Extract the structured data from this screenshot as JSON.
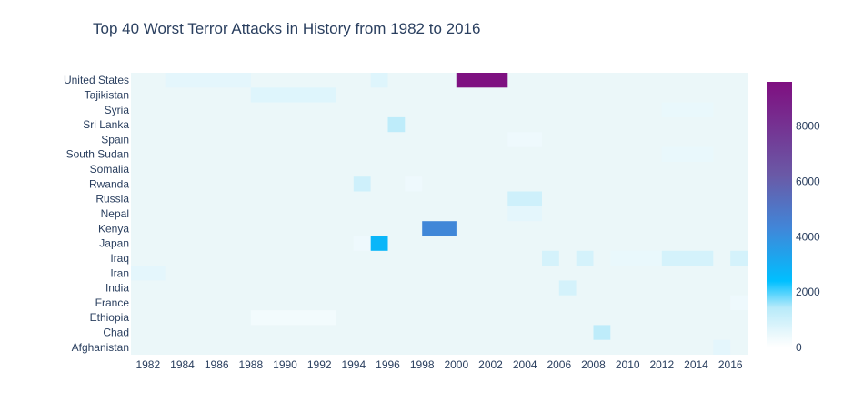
{
  "chart_data": {
    "type": "heatmap",
    "title": "Top 40 Worst Terror Attacks in History from 1982 to 2016",
    "xlabel": "",
    "ylabel": "",
    "x_range": [
      1981,
      2017
    ],
    "x_tick_labels": [
      "1982",
      "1984",
      "1986",
      "1988",
      "1990",
      "1992",
      "1994",
      "1996",
      "1998",
      "2000",
      "2002",
      "2004",
      "2006",
      "2008",
      "2010",
      "2012",
      "2014",
      "2016"
    ],
    "countries": [
      "Afghanistan",
      "Chad",
      "Ethiopia",
      "France",
      "India",
      "Iran",
      "Iraq",
      "Japan",
      "Kenya",
      "Nepal",
      "Russia",
      "Rwanda",
      "Somalia",
      "South Sudan",
      "Spain",
      "Sri Lanka",
      "Syria",
      "Tajikistan",
      "United States"
    ],
    "background_value": 0,
    "cells": [
      {
        "country": "United States",
        "x0": 1983,
        "x1": 1988,
        "value": 600
      },
      {
        "country": "United States",
        "x0": 1995,
        "x1": 1996,
        "value": 700
      },
      {
        "country": "United States",
        "x0": 2000,
        "x1": 2003,
        "value": 9500
      },
      {
        "country": "United States",
        "x0": 2017,
        "x1": 2018,
        "value": 1000
      },
      {
        "country": "Tajikistan",
        "x0": 1988,
        "x1": 1993,
        "value": 700
      },
      {
        "country": "Syria",
        "x0": 2012,
        "x1": 2015,
        "value": 500
      },
      {
        "country": "Sri Lanka",
        "x0": 1996,
        "x1": 1997,
        "value": 1300
      },
      {
        "country": "Spain",
        "x0": 2003,
        "x1": 2005,
        "value": 400
      },
      {
        "country": "South Sudan",
        "x0": 2012,
        "x1": 2015,
        "value": 500
      },
      {
        "country": "Somalia",
        "x0": 2017,
        "x1": 2018,
        "value": 900
      },
      {
        "country": "Rwanda",
        "x0": 1994,
        "x1": 1995,
        "value": 1000
      },
      {
        "country": "Rwanda",
        "x0": 1997,
        "x1": 1998,
        "value": 400
      },
      {
        "country": "Russia",
        "x0": 2003,
        "x1": 2005,
        "value": 1000
      },
      {
        "country": "Nepal",
        "x0": 2003,
        "x1": 2005,
        "value": 600
      },
      {
        "country": "Kenya",
        "x0": 1998,
        "x1": 2000,
        "value": 4300
      },
      {
        "country": "Japan",
        "x0": 1994,
        "x1": 1995,
        "value": 400
      },
      {
        "country": "Japan",
        "x0": 1995,
        "x1": 1996,
        "value": 2700
      },
      {
        "country": "Iraq",
        "x0": 2005,
        "x1": 2006,
        "value": 900
      },
      {
        "country": "Iraq",
        "x0": 2007,
        "x1": 2008,
        "value": 900
      },
      {
        "country": "Iraq",
        "x0": 2009,
        "x1": 2012,
        "value": 500
      },
      {
        "country": "Iraq",
        "x0": 2012,
        "x1": 2015,
        "value": 900
      },
      {
        "country": "Iraq",
        "x0": 2016,
        "x1": 2017,
        "value": 900
      },
      {
        "country": "Iran",
        "x0": 1981,
        "x1": 1983,
        "value": 600
      },
      {
        "country": "India",
        "x0": 2006,
        "x1": 2007,
        "value": 900
      },
      {
        "country": "France",
        "x0": 2016,
        "x1": 2017,
        "value": 400
      },
      {
        "country": "Ethiopia",
        "x0": 1988,
        "x1": 1993,
        "value": 300
      },
      {
        "country": "Chad",
        "x0": 2008,
        "x1": 2009,
        "value": 1300
      },
      {
        "country": "Afghanistan",
        "x0": 2015,
        "x1": 2016,
        "value": 600
      },
      {
        "country": "Afghanistan",
        "x0": 2017,
        "x1": 2018,
        "value": 600
      }
    ],
    "colorscale": [
      [
        0.0,
        "#ffffff"
      ],
      [
        0.05,
        "#eaf8fc"
      ],
      [
        0.15,
        "#b7eafa"
      ],
      [
        0.25,
        "#00bfff"
      ],
      [
        0.45,
        "#4186d8"
      ],
      [
        0.65,
        "#6a59a6"
      ],
      [
        1.0,
        "#7f0f80"
      ]
    ],
    "colorbar": {
      "range": [
        0,
        9600
      ],
      "ticks": [
        "0",
        "2000",
        "4000",
        "6000",
        "8000"
      ],
      "tick_values": [
        0,
        2000,
        4000,
        6000,
        8000
      ]
    },
    "plot_background": "#ebf7f9"
  }
}
